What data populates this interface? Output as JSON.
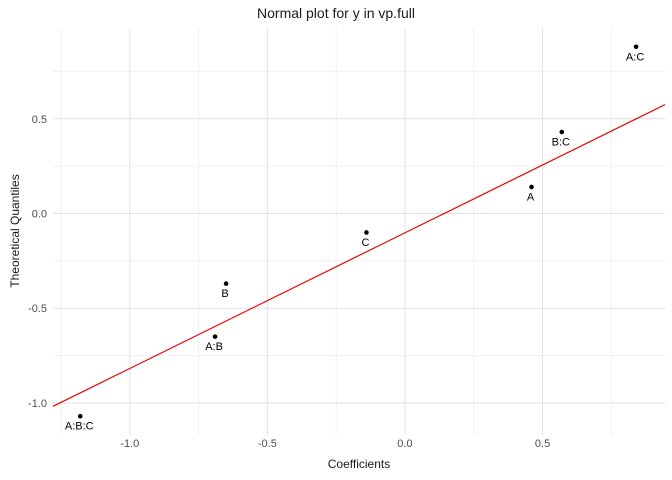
{
  "title": "Normal plot for y in vp.full",
  "axes": {
    "x_title": "Coefficients",
    "y_title": "Theoretical Quantiles"
  },
  "chart_data": {
    "type": "scatter",
    "title": "Normal plot for y in vp.full",
    "xlabel": "Coefficients",
    "ylabel": "Theoretical Quantiles",
    "xlim": [
      -1.279,
      0.945
    ],
    "ylim": [
      -1.169,
      0.979
    ],
    "grid": "on",
    "legend": "none",
    "x_major_ticks": [
      -1.0,
      -0.5,
      0.0,
      0.5
    ],
    "x_tick_labels": [
      "-1.0",
      "-0.5",
      "0.0",
      "0.5"
    ],
    "x_minor_gridlines": [
      -1.25,
      -0.75,
      -0.25,
      0.25,
      0.75
    ],
    "y_major_ticks": [
      0.5,
      0.0,
      -0.5,
      -1.0
    ],
    "y_tick_labels": [
      "0.5",
      "0.0",
      "-0.5",
      "-1.0"
    ],
    "y_minor_gridlines": [
      0.75,
      0.25,
      -0.25,
      -0.75
    ],
    "points": [
      {
        "label": "A:C",
        "x": 0.84,
        "y": 0.88
      },
      {
        "label": "B:C",
        "x": 0.57,
        "y": 0.43
      },
      {
        "label": "A",
        "x": 0.46,
        "y": 0.14
      },
      {
        "label": "C",
        "x": -0.14,
        "y": -0.1
      },
      {
        "label": "B",
        "x": -0.65,
        "y": -0.37
      },
      {
        "label": "A:B",
        "x": -0.69,
        "y": -0.65
      },
      {
        "label": "A:B:C",
        "x": -1.18,
        "y": -1.07
      }
    ],
    "fit_line": {
      "slope": 0.716,
      "intercept": -0.102
    },
    "colors": {
      "background": "#ffffff",
      "grid_major": "#e2e2e2",
      "grid_minor": "#f0f0f0",
      "fit_line": "#ee0000",
      "point": "#000000",
      "point_label": "#000000",
      "axis_text": "#4d4d4d",
      "title_text": "#1a1a1a"
    }
  }
}
